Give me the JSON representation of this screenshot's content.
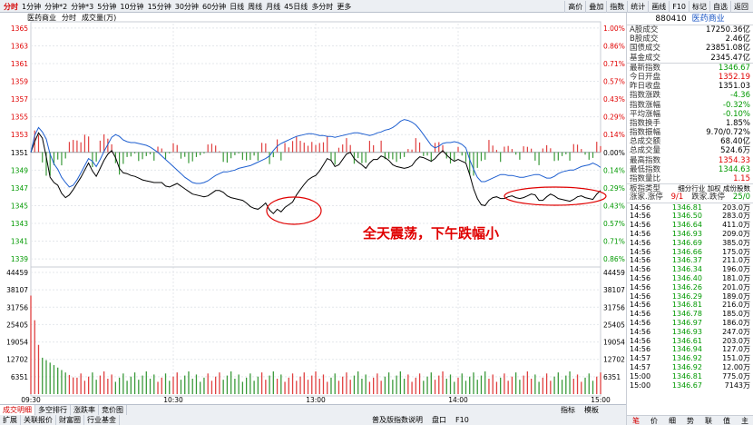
{
  "toolbar": {
    "periods": [
      "分时",
      "1分钟",
      "分钟*2",
      "分钟*3",
      "5分钟",
      "10分钟",
      "15分钟",
      "30分钟",
      "60分钟",
      "日线",
      "周线",
      "月线",
      "45日线",
      "多分时",
      "更多"
    ],
    "tools": [
      "高价",
      "叠加",
      "指数",
      "统计",
      "画线",
      "F10",
      "标记",
      "自选",
      "返回"
    ]
  },
  "chart_head": {
    "name": "医药商业",
    "mode": "分时",
    "vol": "成交量(万)"
  },
  "price_axis_left": [
    "1365",
    "1363",
    "1361",
    "1359",
    "1357",
    "1355",
    "1353",
    "1351",
    "1349",
    "1347",
    "1345",
    "1343",
    "1341",
    "1339"
  ],
  "price_axis_right": [
    "1.00%",
    "0.86%",
    "0.71%",
    "0.57%",
    "0.43%",
    "0.29%",
    "0.14%",
    "0.00%",
    "0.14%",
    "0.29%",
    "0.43%",
    "0.57%",
    "0.71%",
    "0.86%"
  ],
  "vol_axis": [
    "44459",
    "38107",
    "31756",
    "25405",
    "19054",
    "12702",
    "6351"
  ],
  "time_labels": [
    "09:30",
    "10:30",
    "13:00",
    "14:00",
    "15:00"
  ],
  "annotation": "全天震荡，下午跌幅小",
  "chart_data": {
    "type": "line",
    "prev_close": 1351.03,
    "ylim": [
      1338.5,
      1365.5
    ],
    "pct_range": [
      -1.0,
      1.0
    ],
    "series": [
      {
        "values": [
          1351,
          1352.2,
          1353.2,
          1352.6,
          1350.5,
          1348.2,
          1347.6,
          1347.3,
          1346.4,
          1345.9,
          1346.2,
          1346.8,
          1347.5,
          1348.2,
          1349,
          1349.8,
          1348.9,
          1348.3,
          1349.2,
          1350.1,
          1350.8,
          1351.2,
          1350.4,
          1349.2,
          1348.7,
          1348.6,
          1348.4,
          1348.3,
          1348.1,
          1347.9,
          1347.8,
          1347.7,
          1347.6,
          1347.6,
          1347.6,
          1347.2,
          1347.1,
          1347.3,
          1347.5,
          1347.2,
          1346.9,
          1346.6,
          1346.3,
          1346.2,
          1346.1,
          1346,
          1346.1,
          1346.4,
          1346.7,
          1346.7,
          1346.5,
          1346.1,
          1345.9,
          1345.8,
          1345.7,
          1345.6,
          1345.3,
          1344.9,
          1344.7,
          1344.6,
          1344.9,
          1345.3,
          1344.5,
          1344.1,
          1344.6,
          1344.3,
          1344.8,
          1345.1,
          1345.4,
          1346.2,
          1346.8,
          1347.4,
          1347.9,
          1348.2,
          1348.4,
          1348.9,
          1349.6,
          1350.3,
          1350.1,
          1349.4,
          1349.6,
          1350.2,
          1350.8,
          1351,
          1350.3,
          1349.9,
          1349.6,
          1349.2,
          1349.8,
          1350.2,
          1350.2,
          1350.6,
          1350.4,
          1350.1,
          1349.6,
          1349.4,
          1349.3,
          1349.2,
          1349.3,
          1349.5,
          1350.1,
          1350.5,
          1350.4,
          1350.2,
          1350,
          1350.3,
          1350.8,
          1351.2,
          1350.7,
          1350.3,
          1350,
          1350.2,
          1350,
          1349.8,
          1348.5,
          1346.9,
          1345.8,
          1345.1,
          1345,
          1345.6,
          1345.9,
          1346,
          1345.8,
          1345.8,
          1346,
          1346.1,
          1345.9,
          1345.8,
          1345.9,
          1346.1,
          1346.3,
          1346.2,
          1345.6,
          1345.6,
          1346,
          1346.3,
          1346.1,
          1345.8,
          1345.7,
          1345.6,
          1345.5,
          1345.7,
          1346,
          1346.1,
          1345.9,
          1345.8,
          1345.7,
          1346.3,
          1346.7
        ]
      },
      {
        "values": [
          1351,
          1352.9,
          1353.8,
          1353.3,
          1352.5,
          1350.8,
          1349.7,
          1349.1,
          1348.2,
          1347.6,
          1347.1,
          1347.3,
          1347.9,
          1348.7,
          1349.5,
          1350.3,
          1350,
          1349.4,
          1350.2,
          1351.1,
          1351.9,
          1352.7,
          1353,
          1352.8,
          1352.4,
          1352.2,
          1352.1,
          1352.1,
          1352,
          1351.9,
          1351.8,
          1351.6,
          1351.3,
          1351,
          1350.6,
          1350.2,
          1349.8,
          1349.4,
          1349,
          1348.6,
          1348.2,
          1347.9,
          1347.6,
          1347.5,
          1347.5,
          1347.6,
          1347.8,
          1348.1,
          1348.4,
          1348.6,
          1348.8,
          1348.8,
          1348.9,
          1349,
          1349.2,
          1349.3,
          1349.4,
          1349.5,
          1349.7,
          1349.9,
          1350.1,
          1350.3,
          1350.6,
          1351.2,
          1351.7,
          1352,
          1352.2,
          1352.4,
          1352.6,
          1352.8,
          1352.9,
          1353,
          1353.1,
          1353.1,
          1353,
          1352.9,
          1352.9,
          1352.8,
          1352.8,
          1352.7,
          1352.8,
          1352.9,
          1353,
          1353.1,
          1353.2,
          1353.2,
          1353.1,
          1353,
          1352.9,
          1353,
          1353.2,
          1353.3,
          1353.5,
          1353.6,
          1353.8,
          1354.1,
          1354.5,
          1354.7,
          1354.6,
          1354.4,
          1354.1,
          1353.6,
          1353,
          1352.4,
          1351.8,
          1351.5,
          1351.7,
          1352,
          1352.1,
          1352.1,
          1352.2,
          1352.1,
          1351.9,
          1351.5,
          1350.2,
          1349.1,
          1348.2,
          1347.7,
          1347.7,
          1347.9,
          1348.1,
          1348.3,
          1348.5,
          1348.5,
          1348.4,
          1348.4,
          1348.3,
          1348.2,
          1348.2,
          1348.3,
          1348.4,
          1348.5,
          1348.5,
          1348.3,
          1348.1,
          1348.1,
          1348.3,
          1348.6,
          1348.8,
          1348.9,
          1349,
          1349,
          1349.2,
          1349.4,
          1349.5,
          1349.6,
          1349.8,
          1349.6,
          1349.3
        ]
      }
    ],
    "volume_max": 44459
  },
  "right_panel": {
    "code": "880410",
    "name": "医药商业",
    "stats": [
      {
        "label": "A股成交",
        "value": "17250.36亿",
        "cls": ""
      },
      {
        "label": "B股成交",
        "value": "2.46亿",
        "cls": ""
      },
      {
        "label": "国债成交",
        "value": "23851.08亿",
        "cls": ""
      },
      {
        "label": "基金成交",
        "value": "2345.47亿",
        "cls": ""
      }
    ],
    "quotes": [
      {
        "label": "最新指数",
        "value": "1346.67",
        "cls": "green"
      },
      {
        "label": "今日开盘",
        "value": "1352.19",
        "cls": "red"
      },
      {
        "label": "昨日收盘",
        "value": "1351.03",
        "cls": ""
      },
      {
        "label": "指数涨跌",
        "value": "-4.36",
        "cls": "green"
      },
      {
        "label": "指数涨幅",
        "value": "-0.32%",
        "cls": "green"
      },
      {
        "label": "平均涨幅",
        "value": "-0.10%",
        "cls": "green"
      },
      {
        "label": "指数换手",
        "value": "1.85%",
        "cls": ""
      },
      {
        "label": "指数振幅",
        "value": "9.70/0.72%",
        "cls": ""
      },
      {
        "label": "总成交额",
        "value": "68.40亿",
        "cls": ""
      },
      {
        "label": "总成交量",
        "value": "524.6万",
        "cls": ""
      },
      {
        "label": "最高指数",
        "value": "1354.33",
        "cls": "red"
      },
      {
        "label": "最低指数",
        "value": "1344.63",
        "cls": "green"
      },
      {
        "label": "指数量比",
        "value": "1.15",
        "cls": "red"
      }
    ],
    "board": {
      "label": "板指类型",
      "value": "细分行业 加权 成份股数"
    },
    "updown": {
      "label": "涨家.涨停",
      "v1": "9/1",
      "label2": "跌家.跌停",
      "v2": "25/0"
    },
    "trades": [
      {
        "t": "14:56",
        "p": "1346.81",
        "v": "203.0万"
      },
      {
        "t": "14:56",
        "p": "1346.50",
        "v": "283.0万"
      },
      {
        "t": "14:56",
        "p": "1346.64",
        "v": "411.0万"
      },
      {
        "t": "14:56",
        "p": "1346.93",
        "v": "209.0万"
      },
      {
        "t": "14:56",
        "p": "1346.69",
        "v": "385.0万"
      },
      {
        "t": "14:56",
        "p": "1346.66",
        "v": "175.0万"
      },
      {
        "t": "14:56",
        "p": "1346.37",
        "v": "211.0万"
      },
      {
        "t": "14:56",
        "p": "1346.34",
        "v": "196.0万"
      },
      {
        "t": "14:56",
        "p": "1346.40",
        "v": "181.0万"
      },
      {
        "t": "14:56",
        "p": "1346.26",
        "v": "201.0万"
      },
      {
        "t": "14:56",
        "p": "1346.29",
        "v": "189.0万"
      },
      {
        "t": "14:56",
        "p": "1346.81",
        "v": "216.0万"
      },
      {
        "t": "14:56",
        "p": "1346.78",
        "v": "185.0万"
      },
      {
        "t": "14:56",
        "p": "1346.97",
        "v": "186.0万"
      },
      {
        "t": "14:56",
        "p": "1346.93",
        "v": "247.0万"
      },
      {
        "t": "14:56",
        "p": "1346.61",
        "v": "203.0万"
      },
      {
        "t": "14:56",
        "p": "1346.94",
        "v": "127.0万"
      },
      {
        "t": "14:57",
        "p": "1346.92",
        "v": "151.0万"
      },
      {
        "t": "14:57",
        "p": "1346.92",
        "v": "12.00万"
      },
      {
        "t": "15:00",
        "p": "1346.81",
        "v": "775.0万"
      },
      {
        "t": "15:00",
        "p": "1346.67",
        "v": "7143万"
      }
    ],
    "foot": [
      "笔",
      "价",
      "细",
      "势",
      "联",
      "值",
      "主"
    ]
  },
  "bottom_bar": {
    "row1": [
      "成交明细",
      "多空排行",
      "涨跌率",
      "竞价图"
    ],
    "row2": [
      "扩展",
      "关联报价",
      "财富圈",
      "行业基金"
    ],
    "ctrl": [
      "指标",
      "模板"
    ],
    "row2_right": [
      "普及版指数说明",
      "盘口",
      "F10"
    ]
  }
}
